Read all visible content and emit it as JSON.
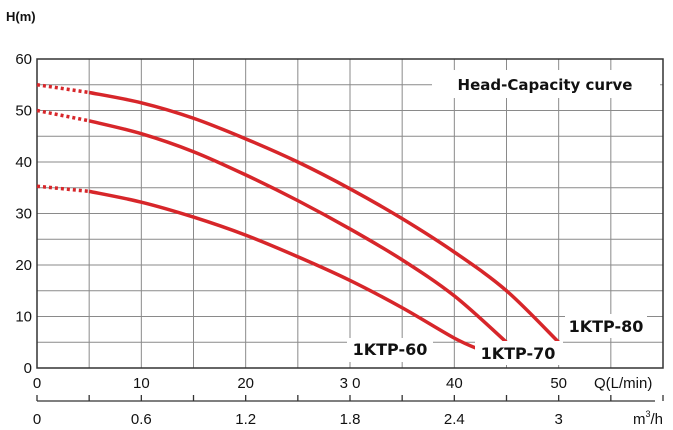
{
  "chart_data": {
    "type": "line",
    "title": "Head-Capacity curve",
    "ylabel": "H(m)",
    "xlabel": "Q(L/min)",
    "x2label": "m³/h",
    "ylim": [
      0,
      60
    ],
    "xlim": [
      0,
      60
    ],
    "y_ticks": [
      "0",
      "10",
      "20",
      "30",
      "40",
      "50",
      "60"
    ],
    "x_ticks": [
      {
        "value": 0,
        "label": "0"
      },
      {
        "value": 10,
        "label": "10"
      },
      {
        "value": 20,
        "label": "20"
      },
      {
        "value": 30,
        "label": "3 0"
      },
      {
        "value": 40,
        "label": "40"
      },
      {
        "value": 50,
        "label": "50"
      }
    ],
    "x2_ticks": [
      {
        "value": 0,
        "label": "0"
      },
      {
        "value": 10,
        "label": "0.6"
      },
      {
        "value": 20,
        "label": "1.2"
      },
      {
        "value": 30,
        "label": "1.8"
      },
      {
        "value": 40,
        "label": "2.4"
      },
      {
        "value": 50,
        "label": "3"
      }
    ],
    "grid": true,
    "line_color": "#d7262a",
    "series": [
      {
        "name": "1KTP-80",
        "dashed": [
          [
            0,
            55
          ],
          [
            5,
            53.5
          ]
        ],
        "points": [
          [
            5,
            53.5
          ],
          [
            10,
            51.5
          ],
          [
            15,
            48.5
          ],
          [
            20,
            44.5
          ],
          [
            25,
            40
          ],
          [
            30,
            34.8
          ],
          [
            35,
            29
          ],
          [
            40,
            22.5
          ],
          [
            45,
            15
          ],
          [
            50,
            5
          ]
        ]
      },
      {
        "name": "1KTP-70",
        "dashed": [
          [
            0,
            50
          ],
          [
            5,
            48
          ]
        ],
        "points": [
          [
            5,
            48
          ],
          [
            10,
            45.5
          ],
          [
            15,
            42
          ],
          [
            20,
            37.5
          ],
          [
            25,
            32.5
          ],
          [
            30,
            27
          ],
          [
            35,
            21
          ],
          [
            40,
            14
          ],
          [
            45,
            5
          ]
        ]
      },
      {
        "name": "1KTP-60",
        "dashed": [
          [
            0,
            35.3
          ],
          [
            5,
            34.3
          ]
        ],
        "points": [
          [
            5,
            34.3
          ],
          [
            10,
            32.2
          ],
          [
            15,
            29.3
          ],
          [
            20,
            25.8
          ],
          [
            25,
            21.6
          ],
          [
            30,
            17
          ],
          [
            35,
            11.7
          ],
          [
            40,
            5.8
          ],
          [
            42.5,
            3.5
          ]
        ]
      }
    ]
  }
}
